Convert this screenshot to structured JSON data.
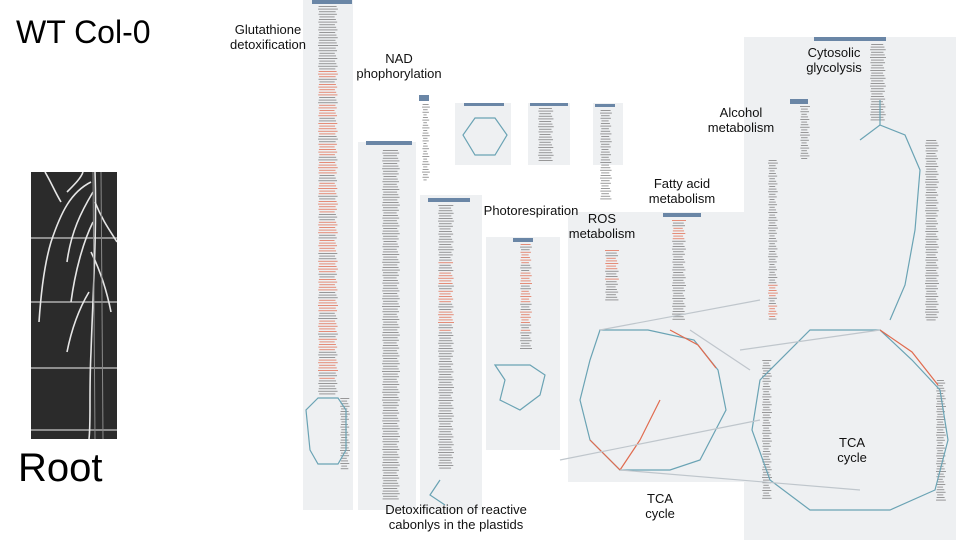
{
  "left": {
    "line_name": "WT Col-0",
    "tissue": "Root"
  },
  "pathway_labels": {
    "glutathione": "Glutathione\ndetoxification",
    "nad": "NAD\nphophorylation",
    "alcohol": "Alcohol\nmetabolism",
    "cytosolic": "Cytosolic\nglycolysis",
    "fatty_acid": "Fatty acid\nmetabolism",
    "photorespiration": "Photorespiration",
    "ros": "ROS\nmetabolism",
    "tca_small": "TCA\ncycle",
    "tca_large": "TCA\ncycle",
    "detox_carbonyls": "Detoxification of reactive\ncabonlys in the plastids"
  },
  "colors": {
    "panel": "#eef0f2",
    "edge_blue": "#6aa3b4",
    "edge_red": "#e06b4f",
    "node_text": "#333333",
    "header": "#5b7a9a"
  }
}
